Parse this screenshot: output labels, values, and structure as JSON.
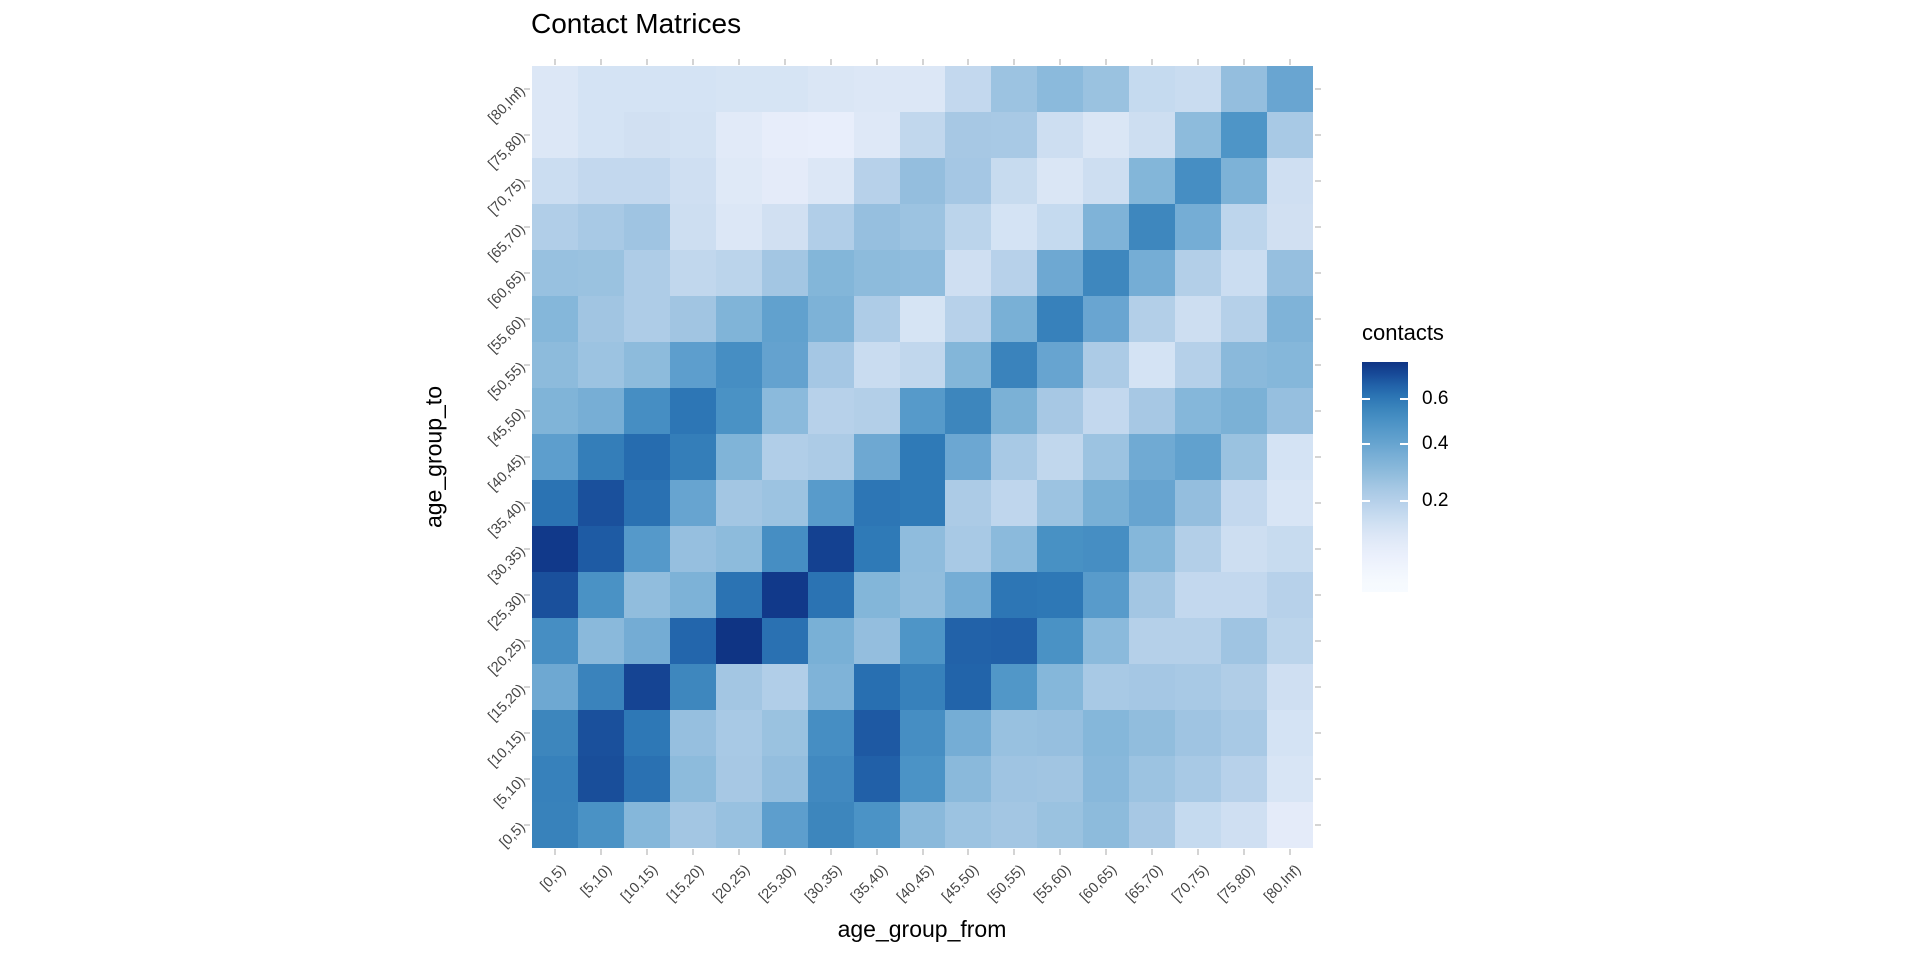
{
  "title": "Contact Matrices",
  "x_axis": {
    "title": "age_group_from",
    "labels": [
      "[0,5)",
      "[5,10)",
      "[10,15)",
      "[15,20)",
      "[20,25)",
      "[25,30)",
      "[30,35)",
      "[35,40)",
      "[40,45)",
      "[45,50)",
      "[50,55)",
      "[55,60)",
      "[60,65)",
      "[65,70)",
      "[70,75)",
      "[75,80)",
      "[80,Inf)"
    ]
  },
  "y_axis": {
    "title": "age_group_to",
    "labels_bottom_to_top": [
      "[0,5)",
      "[5,10)",
      "[10,15)",
      "[15,20)",
      "[20,25)",
      "[25,30)",
      "[30,35)",
      "[35,40)",
      "[40,45)",
      "[45,50)",
      "[50,55)",
      "[55,60)",
      "[60,65)",
      "[65,70)",
      "[70,75)",
      "[75,80)",
      "[80,Inf)"
    ]
  },
  "legend": {
    "title": "contacts",
    "ticks": [
      {
        "label": "0.6",
        "frac_from_top": 0.161
      },
      {
        "label": "0.4",
        "frac_from_top": 0.357
      },
      {
        "label": "0.2",
        "frac_from_top": 0.604
      }
    ],
    "vmax": 0.78,
    "gradient_power": 1.464
  },
  "colors": {
    "background": "#ffffff",
    "axis_tick_color": "#d4d4d4",
    "tick_label_color": "#454545",
    "ramp": [
      [
        0.0,
        "#f7fbff"
      ],
      [
        0.06,
        "#e8eefb"
      ],
      [
        0.1,
        "#dce7f6"
      ],
      [
        0.15,
        "#c9dcf0"
      ],
      [
        0.2,
        "#b5d0e9"
      ],
      [
        0.25,
        "#a3c6e3"
      ],
      [
        0.3,
        "#8dbbdc"
      ],
      [
        0.35,
        "#7db2d7"
      ],
      [
        0.4,
        "#6aa6d1"
      ],
      [
        0.45,
        "#5b9dcc"
      ],
      [
        0.5,
        "#4b93c6"
      ],
      [
        0.55,
        "#3e87be"
      ],
      [
        0.6,
        "#2f7ab7"
      ],
      [
        0.65,
        "#2468ad"
      ],
      [
        0.7,
        "#1c55a0"
      ],
      [
        0.75,
        "#123c8d"
      ],
      [
        0.8,
        "#0d2f7e"
      ]
    ]
  },
  "chart_data": {
    "type": "heatmap",
    "title": "Contact Matrices",
    "xlabel": "age_group_from",
    "ylabel": "age_group_to",
    "legend_title": "contacts",
    "legend_ticks": [
      0.2,
      0.4,
      0.6
    ],
    "approx_value_range": [
      0.06,
      0.78
    ],
    "x_categories": [
      "[0,5)",
      "[5,10)",
      "[10,15)",
      "[15,20)",
      "[20,25)",
      "[25,30)",
      "[30,35)",
      "[35,40)",
      "[40,45)",
      "[45,50)",
      "[50,55)",
      "[55,60)",
      "[60,65)",
      "[65,70)",
      "[70,75)",
      "[75,80)",
      "[80,Inf)"
    ],
    "y_categories_top_to_bottom": [
      "[80,Inf)",
      "[75,80)",
      "[70,75)",
      "[65,70)",
      "[60,65)",
      "[55,60)",
      "[50,55)",
      "[45,50)",
      "[40,45)",
      "[35,40)",
      "[30,35)",
      "[25,30)",
      "[20,25)",
      "[15,20)",
      "[10,15)",
      "[5,10)",
      "[0,5)"
    ],
    "values_rows_top_to_bottom": [
      [
        0.1,
        0.12,
        0.12,
        0.12,
        0.115,
        0.115,
        0.105,
        0.1,
        0.1,
        0.165,
        0.265,
        0.305,
        0.27,
        0.16,
        0.15,
        0.285,
        0.405
      ],
      [
        0.1,
        0.12,
        0.13,
        0.125,
        0.085,
        0.065,
        0.06,
        0.095,
        0.17,
        0.24,
        0.235,
        0.14,
        0.105,
        0.14,
        0.3,
        0.49,
        0.235
      ],
      [
        0.145,
        0.165,
        0.165,
        0.135,
        0.09,
        0.075,
        0.1,
        0.195,
        0.285,
        0.245,
        0.155,
        0.105,
        0.14,
        0.33,
        0.52,
        0.35,
        0.135
      ],
      [
        0.21,
        0.235,
        0.26,
        0.14,
        0.1,
        0.13,
        0.21,
        0.28,
        0.265,
        0.185,
        0.12,
        0.16,
        0.345,
        0.55,
        0.37,
        0.18,
        0.13
      ],
      [
        0.275,
        0.27,
        0.22,
        0.17,
        0.185,
        0.25,
        0.33,
        0.3,
        0.295,
        0.135,
        0.195,
        0.39,
        0.55,
        0.37,
        0.205,
        0.145,
        0.28
      ],
      [
        0.325,
        0.255,
        0.22,
        0.255,
        0.34,
        0.43,
        0.35,
        0.22,
        0.115,
        0.195,
        0.36,
        0.575,
        0.405,
        0.205,
        0.14,
        0.2,
        0.345
      ],
      [
        0.3,
        0.265,
        0.3,
        0.445,
        0.52,
        0.42,
        0.245,
        0.15,
        0.17,
        0.33,
        0.565,
        0.41,
        0.225,
        0.12,
        0.2,
        0.31,
        0.325
      ],
      [
        0.34,
        0.365,
        0.52,
        0.61,
        0.505,
        0.305,
        0.195,
        0.205,
        0.465,
        0.555,
        0.355,
        0.24,
        0.165,
        0.24,
        0.325,
        0.355,
        0.28
      ],
      [
        0.445,
        0.585,
        0.64,
        0.585,
        0.34,
        0.21,
        0.225,
        0.39,
        0.6,
        0.395,
        0.235,
        0.17,
        0.265,
        0.385,
        0.43,
        0.27,
        0.12
      ],
      [
        0.62,
        0.71,
        0.625,
        0.41,
        0.25,
        0.265,
        0.46,
        0.61,
        0.6,
        0.225,
        0.175,
        0.265,
        0.36,
        0.41,
        0.285,
        0.165,
        0.11
      ],
      [
        0.76,
        0.685,
        0.47,
        0.28,
        0.3,
        0.52,
        0.74,
        0.6,
        0.295,
        0.235,
        0.305,
        0.51,
        0.52,
        0.325,
        0.205,
        0.14,
        0.155
      ],
      [
        0.71,
        0.505,
        0.29,
        0.35,
        0.62,
        0.76,
        0.62,
        0.33,
        0.29,
        0.37,
        0.61,
        0.605,
        0.46,
        0.25,
        0.165,
        0.165,
        0.195
      ],
      [
        0.52,
        0.31,
        0.375,
        0.655,
        0.78,
        0.625,
        0.36,
        0.285,
        0.49,
        0.665,
        0.67,
        0.505,
        0.305,
        0.2,
        0.2,
        0.26,
        0.185
      ],
      [
        0.39,
        0.565,
        0.735,
        0.55,
        0.25,
        0.21,
        0.345,
        0.63,
        0.575,
        0.66,
        0.48,
        0.325,
        0.235,
        0.245,
        0.235,
        0.215,
        0.135
      ],
      [
        0.555,
        0.71,
        0.605,
        0.28,
        0.235,
        0.27,
        0.52,
        0.69,
        0.52,
        0.37,
        0.275,
        0.28,
        0.325,
        0.29,
        0.26,
        0.235,
        0.12
      ],
      [
        0.575,
        0.715,
        0.625,
        0.3,
        0.24,
        0.285,
        0.54,
        0.67,
        0.5,
        0.31,
        0.26,
        0.255,
        0.315,
        0.265,
        0.235,
        0.195,
        0.11
      ],
      [
        0.57,
        0.505,
        0.325,
        0.25,
        0.275,
        0.445,
        0.555,
        0.5,
        0.31,
        0.265,
        0.25,
        0.27,
        0.3,
        0.24,
        0.16,
        0.135,
        0.075
      ]
    ]
  }
}
